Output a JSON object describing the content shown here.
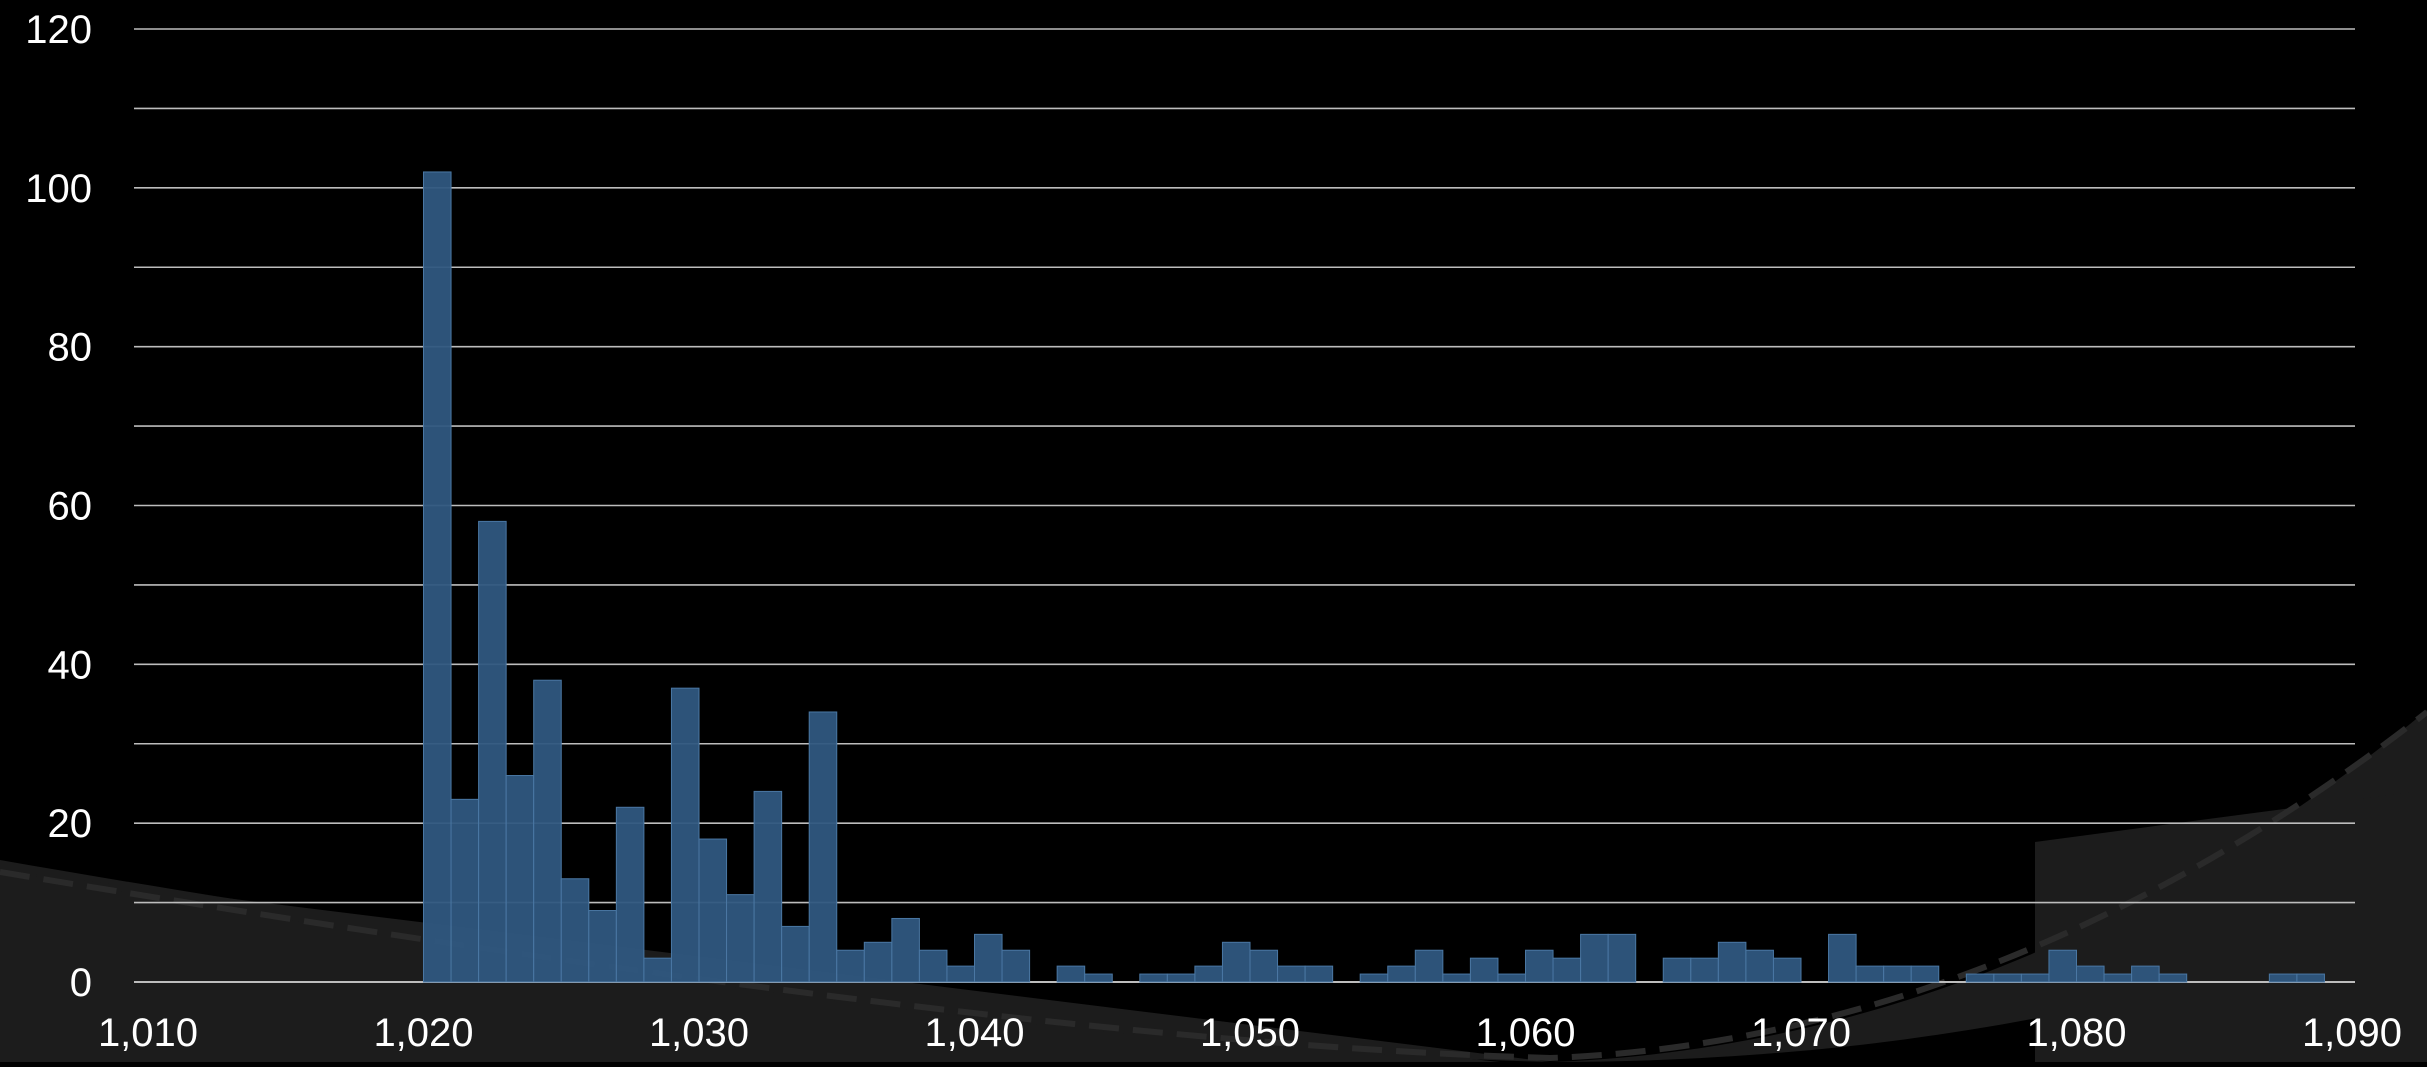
{
  "chart_data": {
    "type": "bar",
    "title": "",
    "xlabel": "",
    "ylabel": "",
    "xlim": [
      1010,
      1090
    ],
    "ylim": [
      0,
      120
    ],
    "x_ticks": [
      1010,
      1020,
      1030,
      1040,
      1050,
      1060,
      1070,
      1080,
      1090
    ],
    "x_tick_labels": [
      "1,010",
      "1,020",
      "1,030",
      "1,040",
      "1,050",
      "1,060",
      "1,070",
      "1,080",
      "1,090"
    ],
    "y_ticks": [
      0,
      20,
      40,
      60,
      80,
      100,
      120
    ],
    "y_tick_labels": [
      "0",
      "20",
      "40",
      "60",
      "80",
      "100",
      "120"
    ],
    "grid": true,
    "legend": "none",
    "bin_width": 1,
    "bins": [
      {
        "x": 1020,
        "y": 102
      },
      {
        "x": 1021,
        "y": 23
      },
      {
        "x": 1022,
        "y": 58
      },
      {
        "x": 1023,
        "y": 26
      },
      {
        "x": 1024,
        "y": 38
      },
      {
        "x": 1025,
        "y": 13
      },
      {
        "x": 1026,
        "y": 9
      },
      {
        "x": 1027,
        "y": 22
      },
      {
        "x": 1028,
        "y": 3
      },
      {
        "x": 1029,
        "y": 37
      },
      {
        "x": 1030,
        "y": 18
      },
      {
        "x": 1031,
        "y": 11
      },
      {
        "x": 1032,
        "y": 24
      },
      {
        "x": 1033,
        "y": 7
      },
      {
        "x": 1034,
        "y": 34
      },
      {
        "x": 1035,
        "y": 4
      },
      {
        "x": 1036,
        "y": 5
      },
      {
        "x": 1037,
        "y": 8
      },
      {
        "x": 1038,
        "y": 4
      },
      {
        "x": 1039,
        "y": 2
      },
      {
        "x": 1040,
        "y": 6
      },
      {
        "x": 1041,
        "y": 4
      },
      {
        "x": 1042,
        "y": 0
      },
      {
        "x": 1043,
        "y": 2
      },
      {
        "x": 1044,
        "y": 1
      },
      {
        "x": 1045,
        "y": 0
      },
      {
        "x": 1046,
        "y": 1
      },
      {
        "x": 1047,
        "y": 1
      },
      {
        "x": 1048,
        "y": 2
      },
      {
        "x": 1049,
        "y": 5
      },
      {
        "x": 1050,
        "y": 4
      },
      {
        "x": 1051,
        "y": 2
      },
      {
        "x": 1052,
        "y": 2
      },
      {
        "x": 1053,
        "y": 0
      },
      {
        "x": 1054,
        "y": 1
      },
      {
        "x": 1055,
        "y": 2
      },
      {
        "x": 1056,
        "y": 4
      },
      {
        "x": 1057,
        "y": 1
      },
      {
        "x": 1058,
        "y": 3
      },
      {
        "x": 1059,
        "y": 1
      },
      {
        "x": 1060,
        "y": 4
      },
      {
        "x": 1061,
        "y": 3
      },
      {
        "x": 1062,
        "y": 6
      },
      {
        "x": 1063,
        "y": 6
      },
      {
        "x": 1064,
        "y": 0
      },
      {
        "x": 1065,
        "y": 3
      },
      {
        "x": 1066,
        "y": 3
      },
      {
        "x": 1067,
        "y": 5
      },
      {
        "x": 1068,
        "y": 4
      },
      {
        "x": 1069,
        "y": 3
      },
      {
        "x": 1070,
        "y": 0
      },
      {
        "x": 1071,
        "y": 6
      },
      {
        "x": 1072,
        "y": 2
      },
      {
        "x": 1073,
        "y": 2
      },
      {
        "x": 1074,
        "y": 2
      },
      {
        "x": 1075,
        "y": 0
      },
      {
        "x": 1076,
        "y": 1
      },
      {
        "x": 1077,
        "y": 1
      },
      {
        "x": 1078,
        "y": 1
      },
      {
        "x": 1079,
        "y": 4
      },
      {
        "x": 1080,
        "y": 2
      },
      {
        "x": 1081,
        "y": 1
      },
      {
        "x": 1082,
        "y": 2
      },
      {
        "x": 1083,
        "y": 1
      },
      {
        "x": 1084,
        "y": 0
      },
      {
        "x": 1085,
        "y": 0
      },
      {
        "x": 1086,
        "y": 0
      },
      {
        "x": 1087,
        "y": 1
      },
      {
        "x": 1088,
        "y": 1
      }
    ]
  },
  "colors": {
    "background": "#000000",
    "bar_fill": "#2f577f",
    "bar_edge": "#4a77a3",
    "grid_line": "#bdbdbd",
    "axis_text": "#ffffff",
    "backdrop_band": "#1c1c1c",
    "backdrop_track": "#2a2a2a"
  }
}
